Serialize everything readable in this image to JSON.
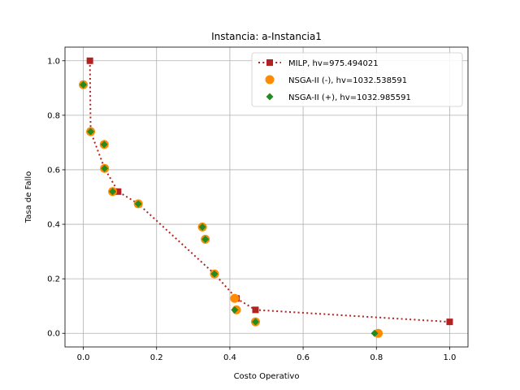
{
  "chart_data": {
    "type": "scatter",
    "title": "Instancia: a-Instancia1",
    "xlabel": "Costo Operativo",
    "ylabel": "Tasa de Fallo",
    "xlim": [
      -0.05,
      1.05
    ],
    "ylim": [
      -0.05,
      1.05
    ],
    "xticks": [
      0.0,
      0.2,
      0.4,
      0.6,
      0.8,
      1.0
    ],
    "yticks": [
      0.0,
      0.2,
      0.4,
      0.6,
      0.8,
      1.0
    ],
    "xtick_labels": [
      "0.0",
      "0.2",
      "0.4",
      "0.6",
      "0.8",
      "1.0"
    ],
    "ytick_labels": [
      "0.0",
      "0.2",
      "0.4",
      "0.6",
      "0.8",
      "1.0"
    ],
    "grid": true,
    "legend_position": "top-right",
    "series": [
      {
        "name": "MILP, hv=975.494021",
        "color": "#b22222",
        "marker": "square",
        "line": "dotted",
        "points": [
          [
            0.018,
            1.0
          ],
          [
            0.02,
            0.74
          ],
          [
            0.058,
            0.605
          ],
          [
            0.095,
            0.52
          ],
          [
            0.15,
            0.475
          ],
          [
            0.358,
            0.218
          ],
          [
            0.418,
            0.128
          ],
          [
            0.47,
            0.086
          ],
          [
            1.0,
            0.042
          ]
        ]
      },
      {
        "name": "NSGA-II (-), hv=1032.538591",
        "color": "#ff8c00",
        "marker": "circle",
        "line": "none",
        "points": [
          [
            0.0,
            0.912
          ],
          [
            0.02,
            0.74
          ],
          [
            0.057,
            0.693
          ],
          [
            0.058,
            0.605
          ],
          [
            0.08,
            0.52
          ],
          [
            0.15,
            0.475
          ],
          [
            0.325,
            0.39
          ],
          [
            0.333,
            0.345
          ],
          [
            0.358,
            0.218
          ],
          [
            0.413,
            0.128
          ],
          [
            0.418,
            0.086
          ],
          [
            0.47,
            0.042
          ],
          [
            0.805,
            0.0
          ]
        ]
      },
      {
        "name": "NSGA-II (+), hv=1032.985591",
        "color": "#228b22",
        "marker": "diamond",
        "line": "none",
        "points": [
          [
            0.0,
            0.912
          ],
          [
            0.02,
            0.74
          ],
          [
            0.057,
            0.693
          ],
          [
            0.058,
            0.605
          ],
          [
            0.08,
            0.52
          ],
          [
            0.15,
            0.475
          ],
          [
            0.325,
            0.39
          ],
          [
            0.333,
            0.345
          ],
          [
            0.358,
            0.218
          ],
          [
            0.413,
            0.086
          ],
          [
            0.47,
            0.042
          ],
          [
            0.795,
            0.0
          ]
        ]
      }
    ]
  }
}
